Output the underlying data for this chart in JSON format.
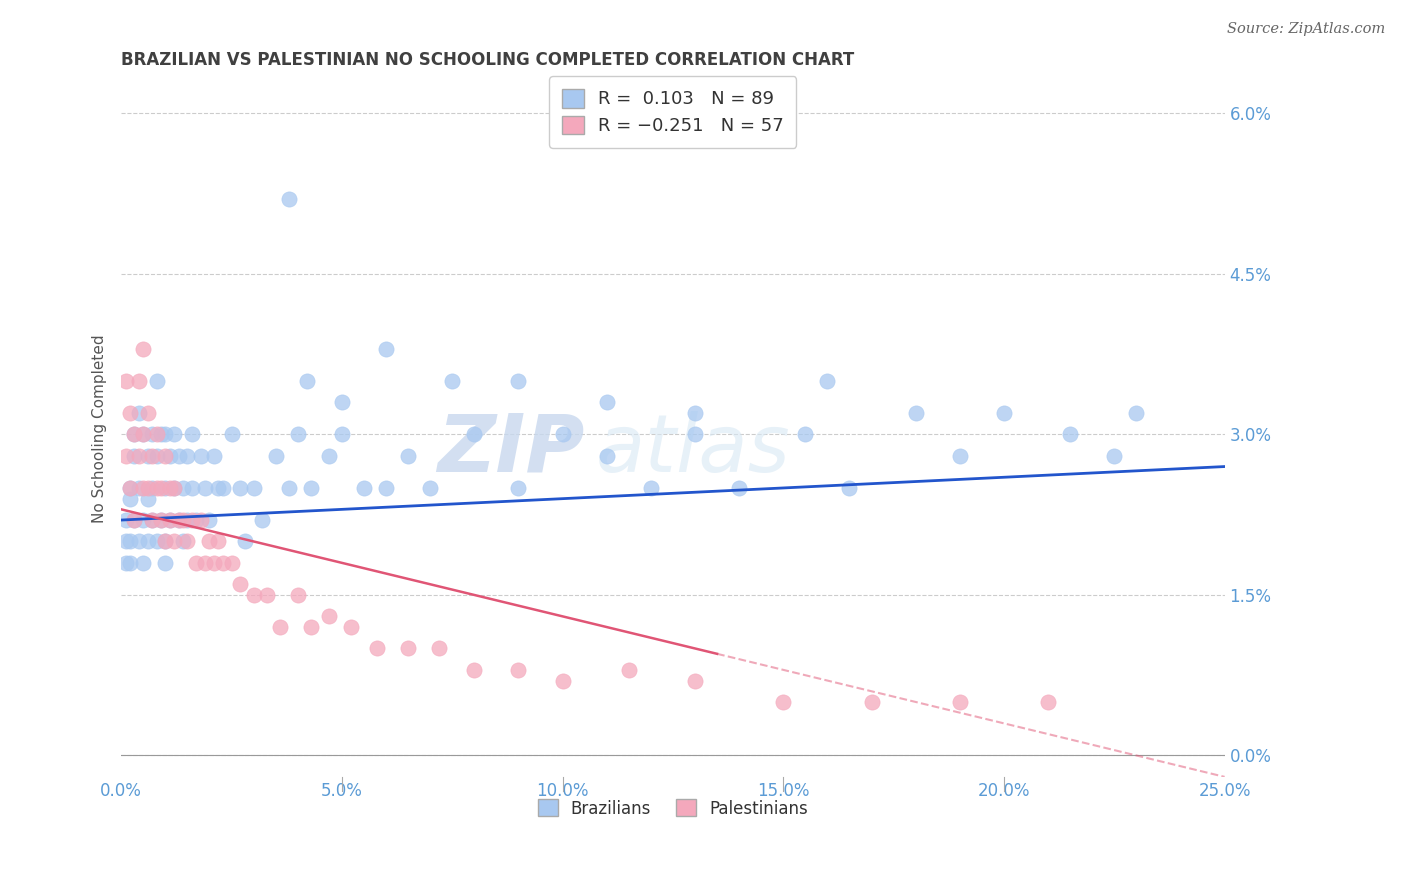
{
  "title": "BRAZILIAN VS PALESTINIAN NO SCHOOLING COMPLETED CORRELATION CHART",
  "source": "Source: ZipAtlas.com",
  "ylabel": "No Schooling Completed",
  "xlim": [
    0.0,
    0.25
  ],
  "ylim": [
    -0.002,
    0.063
  ],
  "xticks": [
    0.0,
    0.05,
    0.1,
    0.15,
    0.2,
    0.25
  ],
  "xticklabels": [
    "0.0%",
    "5.0%",
    "10.0%",
    "15.0%",
    "20.0%",
    "25.0%"
  ],
  "yticks": [
    0.0,
    0.015,
    0.03,
    0.045,
    0.06
  ],
  "yticklabels": [
    "0.0%",
    "1.5%",
    "3.0%",
    "4.5%",
    "6.0%"
  ],
  "brazilian_color": "#a8c8f0",
  "palestinian_color": "#f4a8bc",
  "trend_brazilian_color": "#2255cc",
  "trend_palestinian_color": "#e05575",
  "legend_label_brazilian": "Brazilians",
  "legend_label_palestinian": "Palestinians",
  "watermark_zip": "ZIP",
  "watermark_atlas": "atlas",
  "background_color": "#ffffff",
  "grid_color": "#cccccc",
  "tick_color": "#5b9bd5",
  "title_color": "#404040",
  "bx": [
    0.001,
    0.001,
    0.001,
    0.002,
    0.002,
    0.002,
    0.002,
    0.003,
    0.003,
    0.003,
    0.004,
    0.004,
    0.004,
    0.005,
    0.005,
    0.005,
    0.006,
    0.006,
    0.006,
    0.007,
    0.007,
    0.007,
    0.008,
    0.008,
    0.008,
    0.009,
    0.009,
    0.01,
    0.01,
    0.01,
    0.01,
    0.011,
    0.011,
    0.012,
    0.012,
    0.013,
    0.013,
    0.014,
    0.014,
    0.015,
    0.015,
    0.016,
    0.016,
    0.017,
    0.018,
    0.019,
    0.02,
    0.021,
    0.022,
    0.023,
    0.025,
    0.027,
    0.028,
    0.03,
    0.032,
    0.035,
    0.038,
    0.04,
    0.043,
    0.047,
    0.05,
    0.055,
    0.06,
    0.065,
    0.07,
    0.08,
    0.09,
    0.1,
    0.11,
    0.12,
    0.13,
    0.14,
    0.155,
    0.165,
    0.18,
    0.19,
    0.2,
    0.215,
    0.225,
    0.23,
    0.038,
    0.042,
    0.05,
    0.06,
    0.075,
    0.09,
    0.11,
    0.13,
    0.16
  ],
  "by": [
    0.022,
    0.018,
    0.02,
    0.025,
    0.02,
    0.024,
    0.018,
    0.03,
    0.022,
    0.028,
    0.032,
    0.025,
    0.02,
    0.03,
    0.022,
    0.018,
    0.028,
    0.024,
    0.02,
    0.03,
    0.025,
    0.022,
    0.035,
    0.028,
    0.02,
    0.03,
    0.022,
    0.025,
    0.02,
    0.03,
    0.018,
    0.028,
    0.022,
    0.03,
    0.025,
    0.028,
    0.022,
    0.025,
    0.02,
    0.028,
    0.022,
    0.03,
    0.025,
    0.022,
    0.028,
    0.025,
    0.022,
    0.028,
    0.025,
    0.025,
    0.03,
    0.025,
    0.02,
    0.025,
    0.022,
    0.028,
    0.025,
    0.03,
    0.025,
    0.028,
    0.03,
    0.025,
    0.025,
    0.028,
    0.025,
    0.03,
    0.025,
    0.03,
    0.028,
    0.025,
    0.03,
    0.025,
    0.03,
    0.025,
    0.032,
    0.028,
    0.032,
    0.03,
    0.028,
    0.032,
    0.052,
    0.035,
    0.033,
    0.038,
    0.035,
    0.035,
    0.033,
    0.032,
    0.035
  ],
  "px": [
    0.001,
    0.001,
    0.002,
    0.002,
    0.003,
    0.003,
    0.004,
    0.004,
    0.005,
    0.005,
    0.005,
    0.006,
    0.006,
    0.007,
    0.007,
    0.008,
    0.008,
    0.009,
    0.009,
    0.01,
    0.01,
    0.011,
    0.011,
    0.012,
    0.012,
    0.013,
    0.014,
    0.015,
    0.016,
    0.017,
    0.018,
    0.019,
    0.02,
    0.021,
    0.022,
    0.023,
    0.025,
    0.027,
    0.03,
    0.033,
    0.036,
    0.04,
    0.043,
    0.047,
    0.052,
    0.058,
    0.065,
    0.072,
    0.08,
    0.09,
    0.1,
    0.115,
    0.13,
    0.15,
    0.17,
    0.19,
    0.21
  ],
  "py": [
    0.035,
    0.028,
    0.032,
    0.025,
    0.03,
    0.022,
    0.035,
    0.028,
    0.03,
    0.038,
    0.025,
    0.032,
    0.025,
    0.028,
    0.022,
    0.03,
    0.025,
    0.025,
    0.022,
    0.028,
    0.02,
    0.025,
    0.022,
    0.025,
    0.02,
    0.022,
    0.022,
    0.02,
    0.022,
    0.018,
    0.022,
    0.018,
    0.02,
    0.018,
    0.02,
    0.018,
    0.018,
    0.016,
    0.015,
    0.015,
    0.012,
    0.015,
    0.012,
    0.013,
    0.012,
    0.01,
    0.01,
    0.01,
    0.008,
    0.008,
    0.007,
    0.008,
    0.007,
    0.005,
    0.005,
    0.005,
    0.005
  ],
  "trend_b_x0": 0.0,
  "trend_b_x1": 0.25,
  "trend_b_y0": 0.022,
  "trend_b_y1": 0.027,
  "trend_p_x0": 0.0,
  "trend_p_x1": 0.25,
  "trend_p_y0": 0.023,
  "trend_p_y1": -0.002,
  "trend_p_solid_x1": 0.135
}
